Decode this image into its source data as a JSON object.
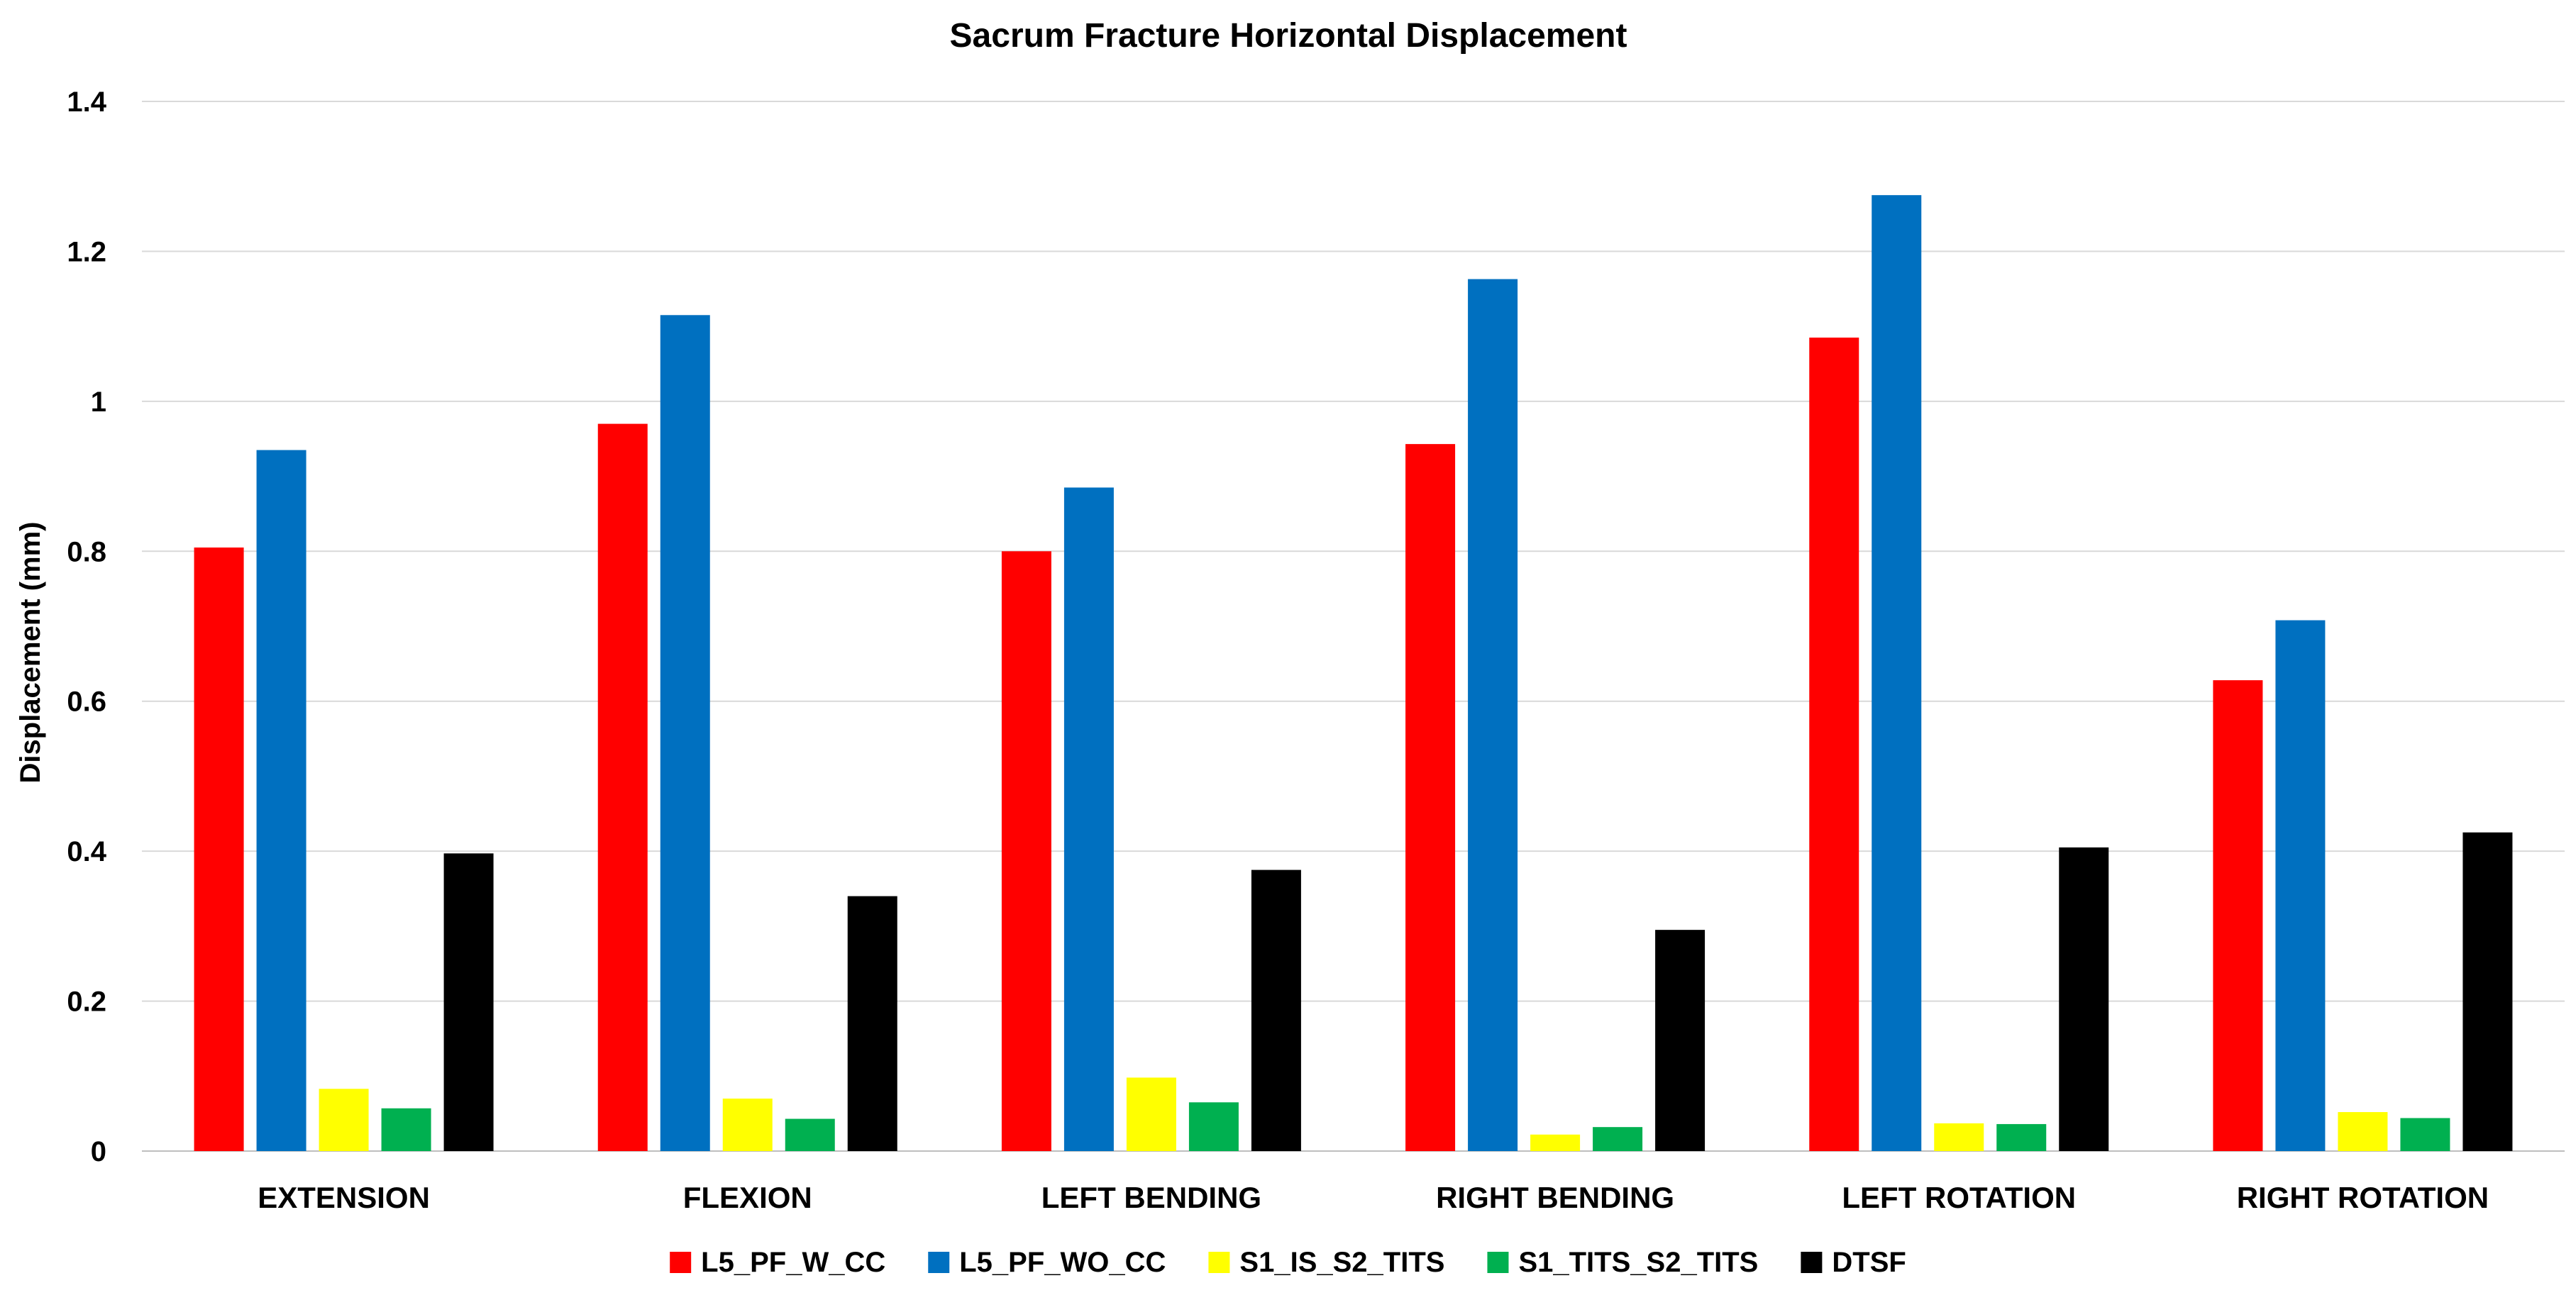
{
  "chart_data": {
    "type": "bar",
    "title": "Sacrum Fracture Horizontal Displacement",
    "xlabel": "",
    "ylabel": "Displacement (mm)",
    "ylim": [
      0,
      1.4
    ],
    "yticks": [
      0,
      0.2,
      0.4,
      0.6,
      0.8,
      1,
      1.2,
      1.4
    ],
    "ytick_labels": [
      "0",
      "0.2",
      "0.4",
      "0.6",
      "0.8",
      "1",
      "1.2",
      "1.4"
    ],
    "grid": true,
    "legend_position": "bottom",
    "categories": [
      "EXTENSION",
      "FLEXION",
      "LEFT BENDING",
      "RIGHT BENDING",
      "LEFT ROTATION",
      "RIGHT ROTATION"
    ],
    "series": [
      {
        "name": "L5_PF_W_CC",
        "color": "#ff0000",
        "values": [
          0.805,
          0.97,
          0.8,
          0.943,
          1.085,
          0.628
        ]
      },
      {
        "name": "L5_PF_WO_CC",
        "color": "#0070c0",
        "values": [
          0.935,
          1.115,
          0.885,
          1.163,
          1.275,
          0.708
        ]
      },
      {
        "name": "S1_IS_S2_TITS",
        "color": "#ffff00",
        "values": [
          0.083,
          0.07,
          0.098,
          0.022,
          0.037,
          0.052
        ]
      },
      {
        "name": "S1_TITS_S2_TITS",
        "color": "#00b050",
        "values": [
          0.057,
          0.043,
          0.065,
          0.032,
          0.036,
          0.044
        ]
      },
      {
        "name": "DTSF",
        "color": "#000000",
        "values": [
          0.397,
          0.34,
          0.375,
          0.295,
          0.405,
          0.425
        ]
      }
    ]
  }
}
